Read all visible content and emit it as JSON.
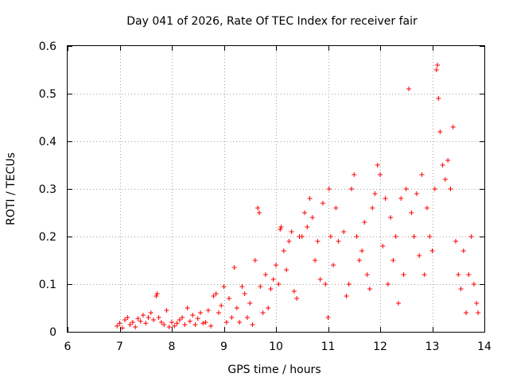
{
  "chart_data": {
    "type": "scatter",
    "title": "Day 041 of 2026, Rate Of TEC Index for receiver fair",
    "xlabel": "GPS time / hours",
    "ylabel": "ROTI / TECUs",
    "xlim": [
      6,
      14
    ],
    "ylim": [
      0,
      0.6
    ],
    "xticks": [
      6,
      7,
      8,
      9,
      10,
      11,
      12,
      13,
      14
    ],
    "xtick_labels": [
      "6",
      "7",
      "8",
      "9",
      "10",
      "11",
      "12",
      "13",
      "14"
    ],
    "yticks": [
      0,
      0.1,
      0.2,
      0.3,
      0.4,
      0.5,
      0.6
    ],
    "ytick_labels": [
      "0",
      "0.1",
      "0.2",
      "0.3",
      "0.4",
      "0.5",
      "0.6"
    ],
    "grid": true,
    "marker": "+",
    "color": "#ff0000",
    "series": [
      {
        "name": "ROTI",
        "points": [
          [
            6.95,
            0.012
          ],
          [
            7.0,
            0.018
          ],
          [
            7.05,
            0.008
          ],
          [
            7.1,
            0.025
          ],
          [
            7.15,
            0.03
          ],
          [
            7.2,
            0.015
          ],
          [
            7.25,
            0.02
          ],
          [
            7.3,
            0.01
          ],
          [
            7.35,
            0.028
          ],
          [
            7.4,
            0.022
          ],
          [
            7.45,
            0.035
          ],
          [
            7.5,
            0.018
          ],
          [
            7.55,
            0.03
          ],
          [
            7.6,
            0.04
          ],
          [
            7.65,
            0.025
          ],
          [
            7.7,
            0.075
          ],
          [
            7.72,
            0.08
          ],
          [
            7.75,
            0.03
          ],
          [
            7.8,
            0.02
          ],
          [
            7.85,
            0.015
          ],
          [
            7.9,
            0.045
          ],
          [
            7.95,
            0.01
          ],
          [
            8.0,
            0.02
          ],
          [
            8.05,
            0.012
          ],
          [
            8.1,
            0.018
          ],
          [
            8.15,
            0.025
          ],
          [
            8.2,
            0.03
          ],
          [
            8.25,
            0.015
          ],
          [
            8.3,
            0.05
          ],
          [
            8.35,
            0.022
          ],
          [
            8.4,
            0.035
          ],
          [
            8.45,
            0.015
          ],
          [
            8.5,
            0.028
          ],
          [
            8.55,
            0.04
          ],
          [
            8.6,
            0.018
          ],
          [
            8.65,
            0.02
          ],
          [
            8.7,
            0.045
          ],
          [
            8.75,
            0.012
          ],
          [
            8.8,
            0.075
          ],
          [
            8.85,
            0.08
          ],
          [
            8.9,
            0.04
          ],
          [
            8.95,
            0.055
          ],
          [
            9.0,
            0.095
          ],
          [
            9.05,
            0.02
          ],
          [
            9.1,
            0.07
          ],
          [
            9.15,
            0.03
          ],
          [
            9.2,
            0.135
          ],
          [
            9.25,
            0.05
          ],
          [
            9.3,
            0.02
          ],
          [
            9.35,
            0.095
          ],
          [
            9.4,
            0.08
          ],
          [
            9.45,
            0.03
          ],
          [
            9.5,
            0.06
          ],
          [
            9.55,
            0.015
          ],
          [
            9.6,
            0.15
          ],
          [
            9.65,
            0.26
          ],
          [
            9.68,
            0.25
          ],
          [
            9.7,
            0.095
          ],
          [
            9.75,
            0.04
          ],
          [
            9.8,
            0.12
          ],
          [
            9.85,
            0.05
          ],
          [
            9.9,
            0.09
          ],
          [
            9.95,
            0.11
          ],
          [
            10.0,
            0.14
          ],
          [
            10.05,
            0.1
          ],
          [
            10.08,
            0.215
          ],
          [
            10.1,
            0.22
          ],
          [
            10.15,
            0.17
          ],
          [
            10.2,
            0.13
          ],
          [
            10.25,
            0.19
          ],
          [
            10.3,
            0.21
          ],
          [
            10.35,
            0.085
          ],
          [
            10.4,
            0.07
          ],
          [
            10.45,
            0.2
          ],
          [
            10.5,
            0.2
          ],
          [
            10.55,
            0.25
          ],
          [
            10.6,
            0.22
          ],
          [
            10.65,
            0.28
          ],
          [
            10.7,
            0.24
          ],
          [
            10.75,
            0.15
          ],
          [
            10.8,
            0.19
          ],
          [
            10.85,
            0.11
          ],
          [
            10.9,
            0.27
          ],
          [
            10.95,
            0.1
          ],
          [
            11.0,
            0.03
          ],
          [
            11.02,
            0.3
          ],
          [
            11.05,
            0.2
          ],
          [
            11.1,
            0.14
          ],
          [
            11.15,
            0.26
          ],
          [
            11.2,
            0.19
          ],
          [
            11.3,
            0.21
          ],
          [
            11.35,
            0.075
          ],
          [
            11.4,
            0.1
          ],
          [
            11.45,
            0.3
          ],
          [
            11.5,
            0.33
          ],
          [
            11.55,
            0.2
          ],
          [
            11.6,
            0.15
          ],
          [
            11.65,
            0.17
          ],
          [
            11.7,
            0.23
          ],
          [
            11.75,
            0.12
          ],
          [
            11.8,
            0.09
          ],
          [
            11.85,
            0.26
          ],
          [
            11.9,
            0.29
          ],
          [
            11.95,
            0.35
          ],
          [
            12.0,
            0.33
          ],
          [
            12.05,
            0.18
          ],
          [
            12.1,
            0.28
          ],
          [
            12.15,
            0.1
          ],
          [
            12.2,
            0.24
          ],
          [
            12.25,
            0.15
          ],
          [
            12.3,
            0.2
          ],
          [
            12.35,
            0.06
          ],
          [
            12.4,
            0.28
          ],
          [
            12.45,
            0.12
          ],
          [
            12.5,
            0.3
          ],
          [
            12.55,
            0.51
          ],
          [
            12.6,
            0.25
          ],
          [
            12.65,
            0.2
          ],
          [
            12.7,
            0.29
          ],
          [
            12.75,
            0.16
          ],
          [
            12.8,
            0.33
          ],
          [
            12.85,
            0.12
          ],
          [
            12.9,
            0.26
          ],
          [
            12.95,
            0.2
          ],
          [
            13.0,
            0.17
          ],
          [
            13.05,
            0.3
          ],
          [
            13.08,
            0.55
          ],
          [
            13.1,
            0.56
          ],
          [
            13.12,
            0.49
          ],
          [
            13.15,
            0.42
          ],
          [
            13.2,
            0.35
          ],
          [
            13.25,
            0.32
          ],
          [
            13.3,
            0.36
          ],
          [
            13.35,
            0.3
          ],
          [
            13.4,
            0.43
          ],
          [
            13.45,
            0.19
          ],
          [
            13.5,
            0.12
          ],
          [
            13.55,
            0.09
          ],
          [
            13.6,
            0.17
          ],
          [
            13.65,
            0.04
          ],
          [
            13.7,
            0.12
          ],
          [
            13.75,
            0.2
          ],
          [
            13.8,
            0.1
          ],
          [
            13.85,
            0.06
          ],
          [
            13.88,
            0.04
          ]
        ]
      }
    ]
  }
}
